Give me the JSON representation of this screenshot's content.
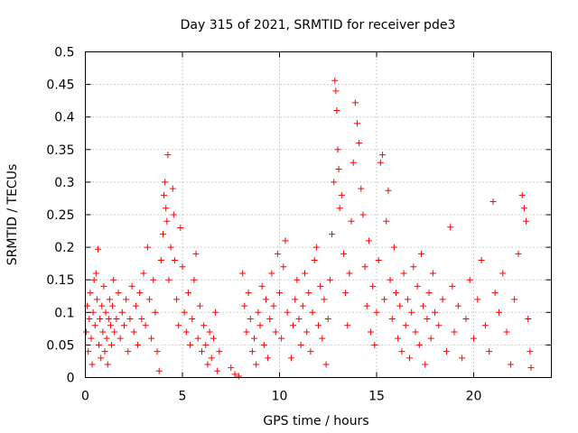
{
  "chart_data": {
    "type": "scatter",
    "title": "Day 315 of 2021, SRMTID for receiver pde3",
    "xlabel": "GPS time / hours",
    "ylabel": "SRMTID / TECUs",
    "xlim": [
      0,
      24
    ],
    "ylim": [
      0,
      0.5
    ],
    "grid": true,
    "marker": "+",
    "color": "#ff0000",
    "xticks": [
      0,
      5,
      10,
      15,
      20
    ],
    "xtick_labels": [
      "0",
      "5",
      "10",
      "15",
      "20"
    ],
    "yticks": [
      0,
      0.05,
      0.1,
      0.15,
      0.2,
      0.25,
      0.3,
      0.35,
      0.4,
      0.45,
      0.5
    ],
    "ytick_labels": [
      "0",
      "0.05",
      "0.1",
      "0.15",
      "0.2",
      "0.25",
      "0.3",
      "0.35",
      "0.4",
      "0.45",
      "0.5"
    ],
    "series": [
      {
        "name": "pde3",
        "points": [
          [
            0.05,
            0.07
          ],
          [
            0.1,
            0.11
          ],
          [
            0.15,
            0.04
          ],
          [
            0.2,
            0.09
          ],
          [
            0.25,
            0.13
          ],
          [
            0.3,
            0.06
          ],
          [
            0.35,
            0.02
          ],
          [
            0.4,
            0.1
          ],
          [
            0.45,
            0.15
          ],
          [
            0.5,
            0.08
          ],
          [
            0.55,
            0.16
          ],
          [
            0.6,
            0.12
          ],
          [
            0.65,
            0.197
          ],
          [
            0.7,
            0.05
          ],
          [
            0.75,
            0.09
          ],
          [
            0.8,
            0.03
          ],
          [
            0.85,
            0.11
          ],
          [
            0.9,
            0.07
          ],
          [
            0.95,
            0.14
          ],
          [
            1.0,
            0.04
          ],
          [
            1.05,
            0.1
          ],
          [
            1.1,
            0.06
          ],
          [
            1.15,
            0.02
          ],
          [
            1.2,
            0.09
          ],
          [
            1.25,
            0.12
          ],
          [
            1.3,
            0.08
          ],
          [
            1.35,
            0.05
          ],
          [
            1.4,
            0.11
          ],
          [
            1.45,
            0.15
          ],
          [
            1.5,
            0.07
          ],
          [
            1.6,
            0.09
          ],
          [
            1.7,
            0.13
          ],
          [
            1.8,
            0.06
          ],
          [
            1.9,
            0.1
          ],
          [
            2.0,
            0.08
          ],
          [
            2.1,
            0.12
          ],
          [
            2.2,
            0.04
          ],
          [
            2.3,
            0.09
          ],
          [
            2.4,
            0.14
          ],
          [
            2.5,
            0.07
          ],
          [
            2.6,
            0.11
          ],
          [
            2.7,
            0.05
          ],
          [
            2.8,
            0.13
          ],
          [
            2.9,
            0.09
          ],
          [
            3.0,
            0.16
          ],
          [
            3.1,
            0.08
          ],
          [
            3.2,
            0.2
          ],
          [
            3.3,
            0.12
          ],
          [
            3.4,
            0.06
          ],
          [
            3.5,
            0.15
          ],
          [
            3.6,
            0.1
          ],
          [
            3.7,
            0.04
          ],
          [
            3.8,
            0.01
          ],
          [
            3.9,
            0.18
          ],
          [
            4.0,
            0.22
          ],
          [
            4.05,
            0.28
          ],
          [
            4.1,
            0.3
          ],
          [
            4.15,
            0.26
          ],
          [
            4.2,
            0.24
          ],
          [
            4.25,
            0.342
          ],
          [
            4.3,
            0.15
          ],
          [
            4.4,
            0.2
          ],
          [
            4.5,
            0.29
          ],
          [
            4.55,
            0.25
          ],
          [
            4.6,
            0.18
          ],
          [
            4.7,
            0.12
          ],
          [
            4.8,
            0.08
          ],
          [
            4.9,
            0.23
          ],
          [
            5.0,
            0.17
          ],
          [
            5.1,
            0.1
          ],
          [
            5.2,
            0.07
          ],
          [
            5.3,
            0.13
          ],
          [
            5.4,
            0.05
          ],
          [
            5.5,
            0.09
          ],
          [
            5.6,
            0.15
          ],
          [
            5.7,
            0.19
          ],
          [
            5.8,
            0.06
          ],
          [
            5.9,
            0.11
          ],
          [
            6.0,
            0.04
          ],
          [
            6.1,
            0.08
          ],
          [
            6.2,
            0.05
          ],
          [
            6.3,
            0.02
          ],
          [
            6.4,
            0.07
          ],
          [
            6.5,
            0.03
          ],
          [
            6.6,
            0.06
          ],
          [
            6.7,
            0.1
          ],
          [
            6.8,
            0.01
          ],
          [
            6.9,
            0.04
          ],
          [
            7.5,
            0.015
          ],
          [
            7.7,
            0.005
          ],
          [
            7.9,
            0.002
          ],
          [
            8.1,
            0.16
          ],
          [
            8.2,
            0.11
          ],
          [
            8.3,
            0.07
          ],
          [
            8.4,
            0.13
          ],
          [
            8.5,
            0.09
          ],
          [
            8.6,
            0.04
          ],
          [
            8.7,
            0.06
          ],
          [
            8.8,
            0.02
          ],
          [
            8.9,
            0.1
          ],
          [
            9.0,
            0.08
          ],
          [
            9.1,
            0.14
          ],
          [
            9.2,
            0.05
          ],
          [
            9.3,
            0.12
          ],
          [
            9.4,
            0.03
          ],
          [
            9.5,
            0.09
          ],
          [
            9.6,
            0.16
          ],
          [
            9.7,
            0.11
          ],
          [
            9.8,
            0.07
          ],
          [
            9.9,
            0.19
          ],
          [
            10.0,
            0.13
          ],
          [
            10.1,
            0.06
          ],
          [
            10.2,
            0.17
          ],
          [
            10.3,
            0.21
          ],
          [
            10.4,
            0.1
          ],
          [
            10.6,
            0.03
          ],
          [
            10.7,
            0.08
          ],
          [
            10.8,
            0.12
          ],
          [
            10.9,
            0.15
          ],
          [
            11.0,
            0.09
          ],
          [
            11.1,
            0.05
          ],
          [
            11.2,
            0.11
          ],
          [
            11.3,
            0.16
          ],
          [
            11.4,
            0.07
          ],
          [
            11.5,
            0.13
          ],
          [
            11.6,
            0.04
          ],
          [
            11.7,
            0.1
          ],
          [
            11.8,
            0.18
          ],
          [
            11.9,
            0.2
          ],
          [
            12.0,
            0.08
          ],
          [
            12.1,
            0.14
          ],
          [
            12.2,
            0.06
          ],
          [
            12.3,
            0.12
          ],
          [
            12.4,
            0.02
          ],
          [
            12.5,
            0.09
          ],
          [
            12.6,
            0.15
          ],
          [
            12.7,
            0.22
          ],
          [
            12.8,
            0.3
          ],
          [
            12.85,
            0.456
          ],
          [
            12.9,
            0.44
          ],
          [
            12.95,
            0.41
          ],
          [
            13.0,
            0.35
          ],
          [
            13.05,
            0.32
          ],
          [
            13.1,
            0.26
          ],
          [
            13.2,
            0.28
          ],
          [
            13.3,
            0.19
          ],
          [
            13.4,
            0.13
          ],
          [
            13.5,
            0.08
          ],
          [
            13.6,
            0.16
          ],
          [
            13.7,
            0.24
          ],
          [
            13.8,
            0.33
          ],
          [
            13.9,
            0.422
          ],
          [
            14.0,
            0.39
          ],
          [
            14.1,
            0.36
          ],
          [
            14.2,
            0.29
          ],
          [
            14.3,
            0.25
          ],
          [
            14.4,
            0.17
          ],
          [
            14.5,
            0.11
          ],
          [
            14.6,
            0.21
          ],
          [
            14.7,
            0.07
          ],
          [
            14.8,
            0.14
          ],
          [
            14.9,
            0.05
          ],
          [
            15.0,
            0.1
          ],
          [
            15.1,
            0.18
          ],
          [
            15.2,
            0.33
          ],
          [
            15.3,
            0.342
          ],
          [
            15.4,
            0.12
          ],
          [
            15.5,
            0.24
          ],
          [
            15.6,
            0.287
          ],
          [
            15.7,
            0.15
          ],
          [
            15.8,
            0.09
          ],
          [
            15.9,
            0.2
          ],
          [
            16.0,
            0.13
          ],
          [
            16.1,
            0.06
          ],
          [
            16.2,
            0.11
          ],
          [
            16.3,
            0.04
          ],
          [
            16.4,
            0.16
          ],
          [
            16.5,
            0.08
          ],
          [
            16.6,
            0.12
          ],
          [
            16.7,
            0.03
          ],
          [
            16.8,
            0.1
          ],
          [
            16.9,
            0.17
          ],
          [
            17.0,
            0.07
          ],
          [
            17.1,
            0.14
          ],
          [
            17.2,
            0.05
          ],
          [
            17.3,
            0.19
          ],
          [
            17.4,
            0.11
          ],
          [
            17.5,
            0.02
          ],
          [
            17.6,
            0.09
          ],
          [
            17.7,
            0.13
          ],
          [
            17.8,
            0.06
          ],
          [
            17.9,
            0.16
          ],
          [
            18.0,
            0.1
          ],
          [
            18.2,
            0.08
          ],
          [
            18.4,
            0.12
          ],
          [
            18.6,
            0.04
          ],
          [
            18.8,
            0.231
          ],
          [
            18.9,
            0.14
          ],
          [
            19.0,
            0.07
          ],
          [
            19.2,
            0.11
          ],
          [
            19.4,
            0.03
          ],
          [
            19.6,
            0.09
          ],
          [
            19.8,
            0.15
          ],
          [
            20.0,
            0.06
          ],
          [
            20.2,
            0.12
          ],
          [
            20.4,
            0.18
          ],
          [
            20.6,
            0.08
          ],
          [
            20.8,
            0.04
          ],
          [
            21.0,
            0.27
          ],
          [
            21.1,
            0.13
          ],
          [
            21.3,
            0.1
          ],
          [
            21.5,
            0.16
          ],
          [
            21.7,
            0.07
          ],
          [
            21.9,
            0.02
          ],
          [
            22.1,
            0.12
          ],
          [
            22.3,
            0.19
          ],
          [
            22.5,
            0.28
          ],
          [
            22.6,
            0.26
          ],
          [
            22.7,
            0.24
          ],
          [
            22.8,
            0.09
          ],
          [
            22.9,
            0.04
          ],
          [
            22.95,
            0.015
          ]
        ]
      }
    ]
  }
}
